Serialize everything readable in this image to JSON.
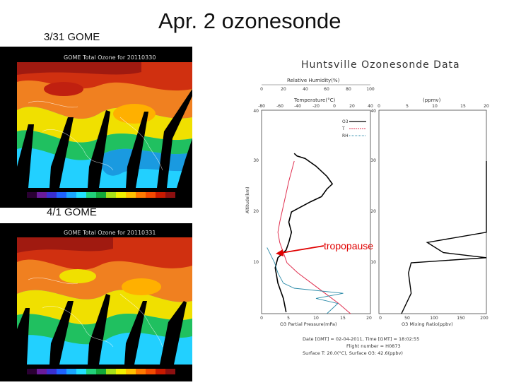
{
  "slide": {
    "title": "Apr. 2 ozonesonde",
    "label_a": "3/31 GOME",
    "label_b": "4/1 GOME"
  },
  "map_a": {
    "heading": "GOME Total Ozone for 20110330"
  },
  "map_b": {
    "heading": "GOME Total Ozone for 20110331"
  },
  "colors": {
    "map_scale": [
      "#2a0033",
      "#6a1b9a",
      "#3a2fd0",
      "#1f63ff",
      "#1aa6ff",
      "#22e0ff",
      "#22d07a",
      "#12a83a",
      "#a6e01a",
      "#f0f000",
      "#ffc000",
      "#ff7a00",
      "#f24a00",
      "#c81a00",
      "#8c1010"
    ],
    "ozone": "#000000",
    "temperature": "#e03050",
    "humidity": "#2a8aa8",
    "tropopause": "#e00000"
  },
  "chart": {
    "title": "Huntsville Ozonesonde Data",
    "rh_axis_label": "Relative Humidity(%)",
    "rh_ticks": [
      "0",
      "20",
      "40",
      "60",
      "80",
      "100"
    ],
    "temp_axis_label": "Temperature(°C)",
    "temp_ticks": [
      "-80",
      "-60",
      "-40",
      "-20",
      "0",
      "20",
      "40"
    ],
    "ppmv_label": "(ppmv)",
    "ppmv_ticks": [
      "0",
      "5",
      "10",
      "15",
      "20"
    ],
    "legend": [
      "O3",
      "T",
      "RH"
    ],
    "alt_label": "Altitude(km)",
    "alt_ticks": [
      "40",
      "30",
      "20",
      "10"
    ],
    "pp_ticks": [
      "0",
      "5",
      "10",
      "15",
      "20"
    ],
    "pp_label": "O3 Partial Pressure(mPa)",
    "mr_ticks": [
      "0",
      "50",
      "100",
      "150",
      "200"
    ],
    "mr_label": "O3 Mixing Ratio(ppbv)",
    "footer_line1": "Date [GMT] = 02-04-2011,  Time [GMT] = 18:02:55",
    "footer_line2": "Flight number = H0873",
    "footer_line3": "Surface T: 20.0(°C), Surface O3: 42.6(ppbv)",
    "tropopause_label": "tropopause"
  },
  "chart_data": {
    "type": "line",
    "title": "Huntsville Ozonesonde Data",
    "ylabel": "Altitude(km)",
    "ylim": [
      0,
      40
    ],
    "series": [
      {
        "name": "O3",
        "unit": "mPa",
        "x": [
          4.5,
          4.0,
          3.0,
          2.5,
          3.0,
          4.5,
          5.0,
          5.5,
          5.0,
          5.5,
          9.0,
          11.0,
          12.0,
          13.0,
          12.0,
          10.0,
          8.0,
          6.5,
          6.0
        ],
        "y": [
          0.3,
          3,
          6,
          9,
          11,
          12.5,
          14,
          16,
          18,
          20,
          22,
          23,
          24.5,
          25.5,
          27,
          29,
          30.5,
          31,
          31.5
        ]
      },
      {
        "name": "T",
        "unit": "°C",
        "x": [
          18,
          5,
          -10,
          -25,
          -40,
          -52,
          -56,
          -60,
          -62,
          -60,
          -55,
          -50,
          -44
        ],
        "y": [
          0,
          2,
          4,
          6,
          8,
          10,
          12,
          14,
          16,
          18,
          22,
          26,
          30
        ]
      },
      {
        "name": "RH",
        "unit": "%",
        "x": [
          60,
          70,
          50,
          75,
          30,
          20,
          15,
          12,
          5
        ],
        "y": [
          0,
          2,
          3,
          4,
          5,
          6,
          8,
          10,
          13
        ]
      },
      {
        "name": "O3 mixing ratio",
        "unit": "ppbv",
        "x": [
          42,
          60,
          55,
          60,
          200,
          120,
          90,
          200,
          200,
          200,
          200
        ],
        "y": [
          0,
          4,
          8,
          10,
          11,
          12,
          14,
          16,
          20,
          25,
          30
        ]
      }
    ]
  }
}
